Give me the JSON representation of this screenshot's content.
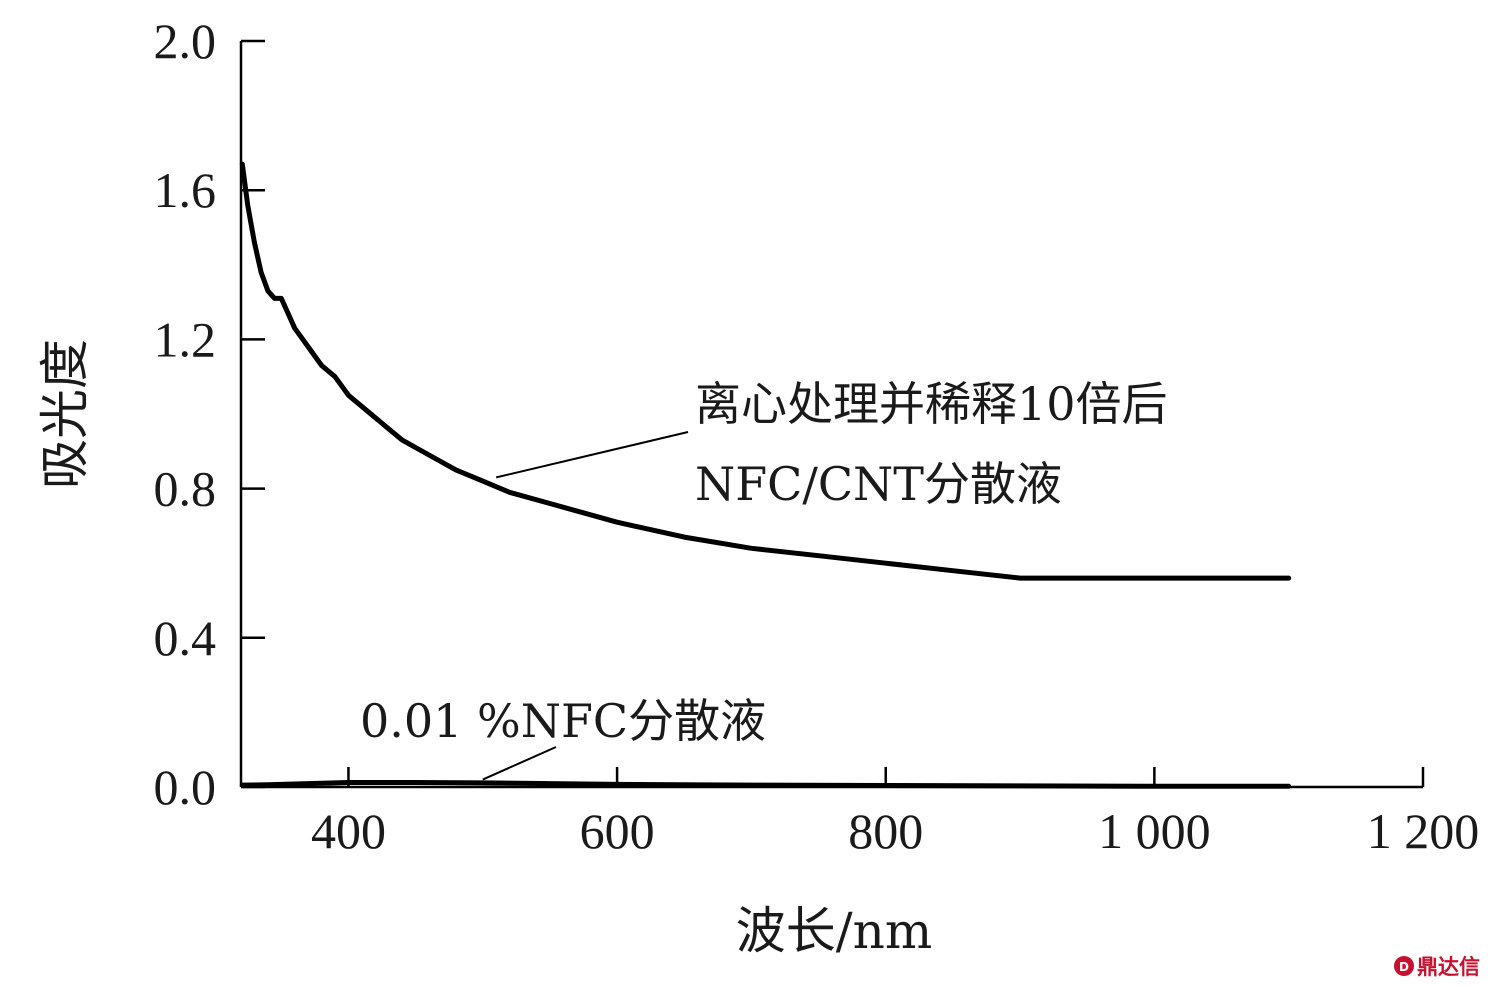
{
  "chart_data": {
    "type": "line",
    "xlabel": "波长/nm",
    "ylabel": "吸光度",
    "xlim": [
      320,
      1200
    ],
    "ylim": [
      0.0,
      2.0
    ],
    "x_ticks": [
      400,
      600,
      800,
      1000,
      1200
    ],
    "x_tick_labels": [
      "400",
      "600",
      "800",
      "1 000",
      "1 200"
    ],
    "y_ticks": [
      0.0,
      0.4,
      0.8,
      1.2,
      1.6,
      2.0
    ],
    "y_tick_labels": [
      "0.0",
      "0.4",
      "0.8",
      "1.2",
      "1.6",
      "2.0"
    ],
    "grid": false,
    "series": [
      {
        "name": "离心处理并稀释10倍后NFC/CNT分散液",
        "color": "#000000",
        "x": [
          321,
          325,
          330,
          335,
          340,
          345,
          350,
          360,
          370,
          380,
          390,
          400,
          420,
          440,
          460,
          480,
          500,
          520,
          550,
          600,
          650,
          700,
          750,
          800,
          850,
          900,
          950,
          1000,
          1100
        ],
        "y": [
          1.67,
          1.56,
          1.46,
          1.38,
          1.33,
          1.31,
          1.31,
          1.23,
          1.18,
          1.13,
          1.1,
          1.05,
          0.99,
          0.93,
          0.89,
          0.85,
          0.82,
          0.79,
          0.76,
          0.71,
          0.67,
          0.64,
          0.62,
          0.6,
          0.58,
          0.56,
          0.56,
          0.56,
          0.56
        ]
      },
      {
        "name": "0.01 %NFC分散液",
        "color": "#000000",
        "x": [
          321,
          340,
          380,
          400,
          450,
          500,
          550,
          600,
          700,
          800,
          900,
          1000,
          1100
        ],
        "y": [
          0.005,
          0.006,
          0.01,
          0.012,
          0.012,
          0.011,
          0.009,
          0.007,
          0.005,
          0.004,
          0.003,
          0.002,
          0.002
        ]
      }
    ],
    "annotations": [
      {
        "lines": [
          "离心处理并稀释10倍后",
          "NFC/CNT分散液"
        ]
      },
      {
        "lines": [
          "0.01 %NFC分散液"
        ]
      }
    ]
  },
  "watermark": {
    "text": "鼎达信",
    "color": "#c8102e"
  }
}
